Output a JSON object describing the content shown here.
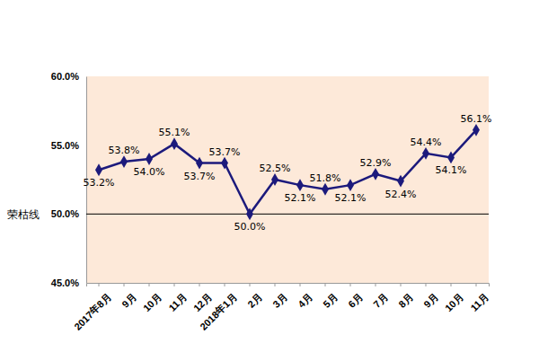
{
  "chart_data": {
    "type": "line",
    "categories": [
      "2017年8月",
      "9月",
      "10月",
      "11月",
      "12月",
      "2018年1月",
      "2月",
      "3月",
      "4月",
      "5月",
      "6月",
      "7月",
      "8月",
      "9月",
      "10月",
      "11月"
    ],
    "values": [
      53.2,
      53.8,
      54.0,
      55.1,
      53.7,
      53.7,
      50.0,
      52.5,
      52.1,
      51.8,
      52.1,
      52.9,
      52.4,
      54.4,
      54.1,
      56.1
    ],
    "value_labels": [
      "53.2%",
      "53.8%",
      "54.0%",
      "55.1%",
      "53.7%",
      "53.7%",
      "50.0%",
      "52.5%",
      "52.1%",
      "51.8%",
      "52.1%",
      "52.9%",
      "52.4%",
      "54.4%",
      "54.1%",
      "56.1%"
    ],
    "color": "#1c1a7c",
    "marker": "diamond",
    "data_labels": true,
    "grid": false,
    "ylim": [
      45,
      60
    ],
    "yticks": [
      {
        "value": 45,
        "label": "45.0%"
      },
      {
        "value": 50,
        "label": "50.0%"
      },
      {
        "value": 55,
        "label": "55.0%"
      },
      {
        "value": 60,
        "label": "60.0%"
      }
    ],
    "annotations": [
      {
        "text": "荣枯线",
        "y": 50
      }
    ]
  }
}
